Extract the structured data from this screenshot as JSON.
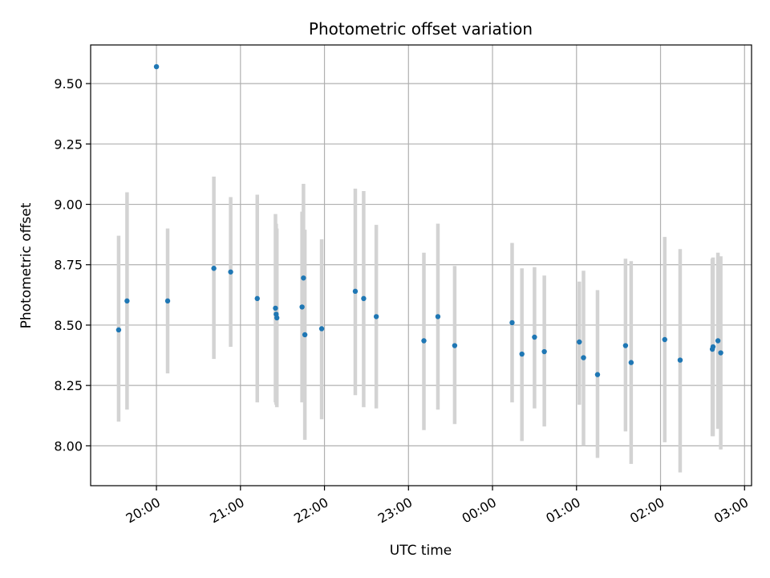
{
  "chart_data": {
    "type": "scatter",
    "title": "Photometric offset variation",
    "xlabel": "UTC time",
    "ylabel": "Photometric offset",
    "x_axis": "time",
    "xlim": [
      "2023-01-01T19:13:00",
      "2023-01-02T03:05:00"
    ],
    "ylim": [
      7.835,
      9.66
    ],
    "grid": true,
    "x_ticks": [
      {
        "t": "2023-01-01T20:00:00",
        "label": "20:00"
      },
      {
        "t": "2023-01-01T21:00:00",
        "label": "21:00"
      },
      {
        "t": "2023-01-01T22:00:00",
        "label": "22:00"
      },
      {
        "t": "2023-01-01T23:00:00",
        "label": "23:00"
      },
      {
        "t": "2023-01-02T00:00:00",
        "label": "00:00"
      },
      {
        "t": "2023-01-02T01:00:00",
        "label": "01:00"
      },
      {
        "t": "2023-01-02T02:00:00",
        "label": "02:00"
      },
      {
        "t": "2023-01-02T03:00:00",
        "label": "03:00"
      }
    ],
    "y_ticks": [
      {
        "v": 8.0,
        "label": "8.00"
      },
      {
        "v": 8.25,
        "label": "8.25"
      },
      {
        "v": 8.5,
        "label": "8.50"
      },
      {
        "v": 8.75,
        "label": "8.75"
      },
      {
        "v": 9.0,
        "label": "9.00"
      },
      {
        "v": 9.25,
        "label": "9.25"
      },
      {
        "v": 9.5,
        "label": "9.50"
      }
    ],
    "colors": {
      "point": "#1f77b4",
      "errorbar": "#d3d3d3",
      "grid": "#b0b0b0"
    },
    "points": [
      {
        "t": "2023-01-01T19:33:00",
        "y": 8.48,
        "lo": 8.1,
        "hi": 8.87
      },
      {
        "t": "2023-01-01T19:39:00",
        "y": 8.6,
        "lo": 8.15,
        "hi": 9.05
      },
      {
        "t": "2023-01-01T20:00:00",
        "y": 9.57,
        "lo": null,
        "hi": null
      },
      {
        "t": "2023-01-01T20:08:00",
        "y": 8.6,
        "lo": 8.3,
        "hi": 8.9
      },
      {
        "t": "2023-01-01T20:41:00",
        "y": 8.735,
        "lo": 8.36,
        "hi": 9.115
      },
      {
        "t": "2023-01-01T20:53:00",
        "y": 8.72,
        "lo": 8.41,
        "hi": 9.03
      },
      {
        "t": "2023-01-01T21:12:00",
        "y": 8.61,
        "lo": 8.18,
        "hi": 9.04
      },
      {
        "t": "2023-01-01T21:25:00",
        "y": 8.57,
        "lo": 8.18,
        "hi": 8.96
      },
      {
        "t": "2023-01-01T21:25:30",
        "y": 8.545,
        "lo": 8.17,
        "hi": 8.92
      },
      {
        "t": "2023-01-01T21:26:00",
        "y": 8.53,
        "lo": 8.16,
        "hi": 8.9
      },
      {
        "t": "2023-01-01T21:44:00",
        "y": 8.575,
        "lo": 8.18,
        "hi": 8.97
      },
      {
        "t": "2023-01-01T21:45:00",
        "y": 8.695,
        "lo": 8.3,
        "hi": 9.085
      },
      {
        "t": "2023-01-01T21:46:00",
        "y": 8.46,
        "lo": 8.025,
        "hi": 8.895
      },
      {
        "t": "2023-01-01T21:58:00",
        "y": 8.485,
        "lo": 8.11,
        "hi": 8.855
      },
      {
        "t": "2023-01-01T22:22:00",
        "y": 8.64,
        "lo": 8.21,
        "hi": 9.065
      },
      {
        "t": "2023-01-01T22:28:00",
        "y": 8.61,
        "lo": 8.16,
        "hi": 9.055
      },
      {
        "t": "2023-01-01T22:37:00",
        "y": 8.535,
        "lo": 8.155,
        "hi": 8.915
      },
      {
        "t": "2023-01-01T23:11:00",
        "y": 8.435,
        "lo": 8.065,
        "hi": 8.8
      },
      {
        "t": "2023-01-01T23:21:00",
        "y": 8.535,
        "lo": 8.15,
        "hi": 8.92
      },
      {
        "t": "2023-01-01T23:33:00",
        "y": 8.415,
        "lo": 8.09,
        "hi": 8.745
      },
      {
        "t": "2023-01-02T00:14:00",
        "y": 8.51,
        "lo": 8.18,
        "hi": 8.84
      },
      {
        "t": "2023-01-02T00:21:00",
        "y": 8.38,
        "lo": 8.02,
        "hi": 8.735
      },
      {
        "t": "2023-01-02T00:30:00",
        "y": 8.45,
        "lo": 8.155,
        "hi": 8.74
      },
      {
        "t": "2023-01-02T00:37:00",
        "y": 8.39,
        "lo": 8.08,
        "hi": 8.705
      },
      {
        "t": "2023-01-02T01:02:00",
        "y": 8.43,
        "lo": 8.17,
        "hi": 8.68
      },
      {
        "t": "2023-01-02T01:05:00",
        "y": 8.365,
        "lo": 8.0,
        "hi": 8.725
      },
      {
        "t": "2023-01-02T01:15:00",
        "y": 8.295,
        "lo": 7.95,
        "hi": 8.645
      },
      {
        "t": "2023-01-02T01:35:00",
        "y": 8.415,
        "lo": 8.06,
        "hi": 8.775
      },
      {
        "t": "2023-01-02T01:39:00",
        "y": 8.345,
        "lo": 7.925,
        "hi": 8.765
      },
      {
        "t": "2023-01-02T02:03:00",
        "y": 8.44,
        "lo": 8.015,
        "hi": 8.865
      },
      {
        "t": "2023-01-02T02:14:00",
        "y": 8.355,
        "lo": 7.89,
        "hi": 8.815
      },
      {
        "t": "2023-01-02T02:37:00",
        "y": 8.4,
        "lo": 8.04,
        "hi": 8.775
      },
      {
        "t": "2023-01-02T02:37:30",
        "y": 8.41,
        "lo": 8.04,
        "hi": 8.78
      },
      {
        "t": "2023-01-02T02:41:00",
        "y": 8.435,
        "lo": 8.07,
        "hi": 8.8
      },
      {
        "t": "2023-01-02T02:43:00",
        "y": 8.385,
        "lo": 7.985,
        "hi": 8.785
      }
    ]
  }
}
